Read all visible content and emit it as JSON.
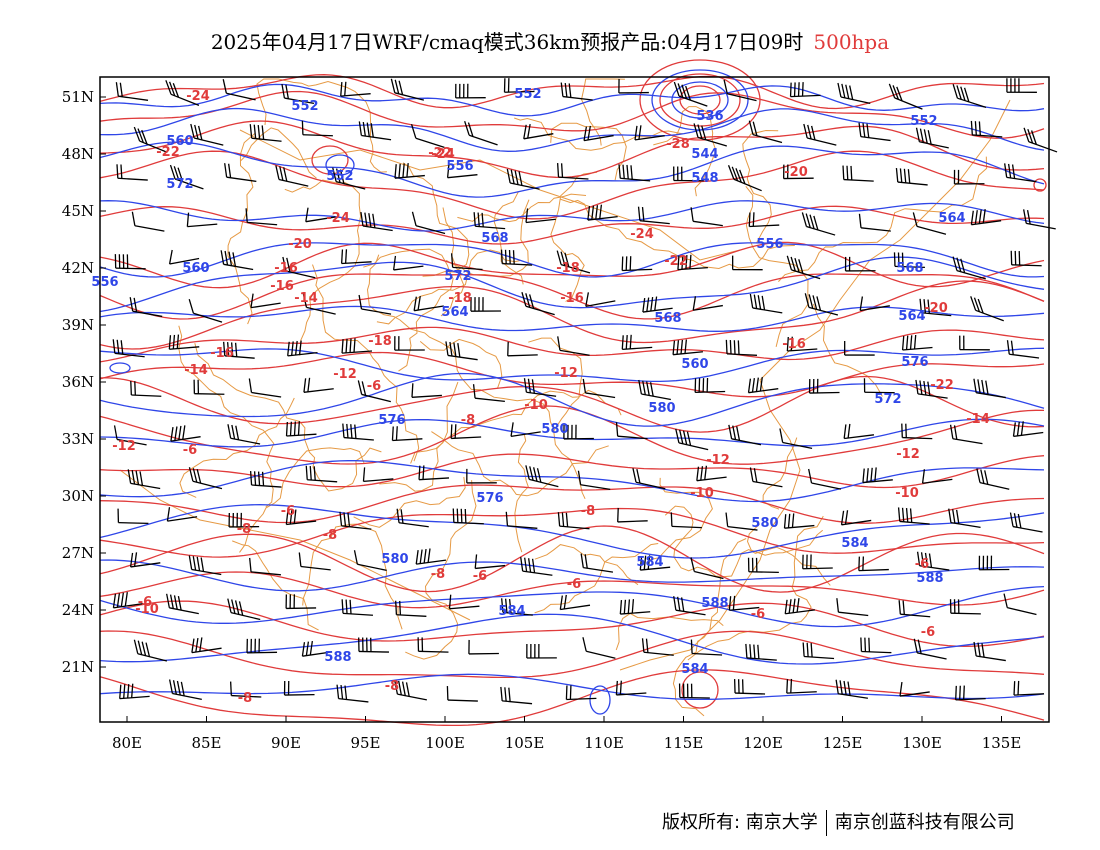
{
  "title": {
    "text": "2025年04月17日WRF/cmaq模式36km预报产品:04月17日09时",
    "level": "500hpa"
  },
  "colors": {
    "geopotential": "#2f46e8",
    "temperature": "#e03b3b",
    "boundaries": "#e69a45",
    "wind_barbs": "#000000"
  },
  "axes": {
    "lon_labels": [
      "80E",
      "85E",
      "90E",
      "95E",
      "100E",
      "105E",
      "110E",
      "115E",
      "120E",
      "125E",
      "130E",
      "135E"
    ],
    "lat_labels": [
      "51N",
      "48N",
      "45N",
      "42N",
      "39N",
      "36N",
      "33N",
      "30N",
      "27N",
      "24N",
      "21N"
    ]
  },
  "legend_labels": {
    "geopotential": [
      "552",
      "560",
      "552",
      "556",
      "536",
      "544",
      "548",
      "552",
      "552",
      "556",
      "564",
      "568",
      "572",
      "560",
      "556",
      "568",
      "572",
      "564",
      "568",
      "560",
      "564",
      "576",
      "576",
      "572",
      "580",
      "580",
      "576",
      "580",
      "580",
      "584",
      "584",
      "584",
      "588",
      "588",
      "584",
      "588"
    ],
    "temperature": [
      "-24",
      "-22",
      "-24",
      "-24",
      "-28",
      "-22",
      "-20",
      "-24",
      "-22",
      "-20",
      "-16",
      "-16",
      "-14",
      "-18",
      "-16",
      "-18",
      "-16",
      "-22",
      "-20",
      "-18",
      "-16",
      "-14",
      "-12",
      "-12",
      "-12",
      "-10",
      "-8",
      "-6",
      "-10",
      "-8",
      "-6",
      "-12",
      "-12",
      "-14",
      "-10",
      "-10",
      "-8",
      "-8",
      "-6",
      "-8",
      "-6",
      "-6",
      "-6",
      "-8",
      "-8",
      "-6",
      "-6",
      "-6"
    ]
  },
  "credits": {
    "owner": "版权所有: 南京大学",
    "company": "南京创蓝科技有限公司"
  }
}
